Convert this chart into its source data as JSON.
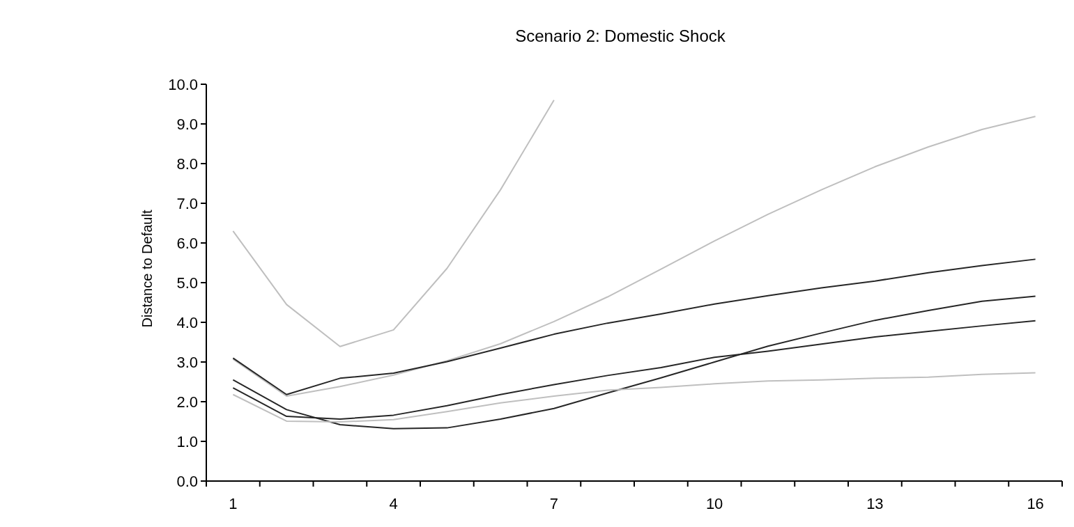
{
  "chart_data": {
    "type": "line",
    "title": "Scenario 2: Domestic Shock",
    "ylabel": "Distance to Default",
    "categories": [
      "1",
      null,
      null,
      "4",
      null,
      null,
      "7",
      null,
      null,
      "10",
      null,
      null,
      "13",
      null,
      null,
      "16"
    ],
    "ylim": [
      0,
      10
    ],
    "yticks": [
      {
        "value": 0,
        "label": "0.0"
      },
      {
        "value": 1,
        "label": "1.0"
      },
      {
        "value": 2,
        "label": "2.0"
      },
      {
        "value": 3,
        "label": "3.0"
      },
      {
        "value": 4,
        "label": "4.0"
      },
      {
        "value": 5,
        "label": "5.0"
      },
      {
        "value": 6,
        "label": "6.0"
      },
      {
        "value": 7,
        "label": "7.0"
      },
      {
        "value": 8,
        "label": "8.0"
      },
      {
        "value": 9,
        "label": "9.0"
      },
      {
        "value": 10,
        "label": "10.0"
      }
    ],
    "grid": false,
    "marker": "none",
    "line_style": "solid",
    "series": [
      {
        "color": "#bfbfbf",
        "values": [
          6.3,
          4.45,
          3.39,
          3.81,
          5.36,
          7.34,
          9.6,
          null,
          null,
          null,
          null,
          null,
          null,
          null,
          null,
          null
        ]
      },
      {
        "color": "#bfbfbf",
        "values": [
          3.07,
          2.14,
          2.38,
          2.67,
          3.03,
          3.46,
          4.02,
          4.64,
          5.34,
          6.05,
          6.72,
          7.34,
          7.92,
          8.42,
          8.86,
          9.19
        ]
      },
      {
        "color": "#262626",
        "values": [
          3.1,
          2.18,
          2.59,
          2.72,
          3.01,
          3.35,
          3.7,
          3.98,
          4.21,
          4.46,
          4.67,
          4.87,
          5.04,
          5.25,
          5.43,
          5.59
        ]
      },
      {
        "color": "#262626",
        "values": [
          2.55,
          1.8,
          1.42,
          1.32,
          1.34,
          1.56,
          1.83,
          2.22,
          2.6,
          3.0,
          3.4,
          3.73,
          4.05,
          4.3,
          4.53,
          4.66
        ]
      },
      {
        "color": "#262626",
        "values": [
          2.35,
          1.63,
          1.56,
          1.66,
          1.9,
          2.18,
          2.43,
          2.66,
          2.86,
          3.12,
          3.27,
          3.45,
          3.63,
          3.77,
          3.91,
          4.04
        ]
      },
      {
        "color": "#bfbfbf",
        "values": [
          2.18,
          1.51,
          1.49,
          1.55,
          1.75,
          1.97,
          2.14,
          2.29,
          2.36,
          2.45,
          2.52,
          2.55,
          2.59,
          2.62,
          2.69,
          2.73
        ]
      }
    ]
  }
}
